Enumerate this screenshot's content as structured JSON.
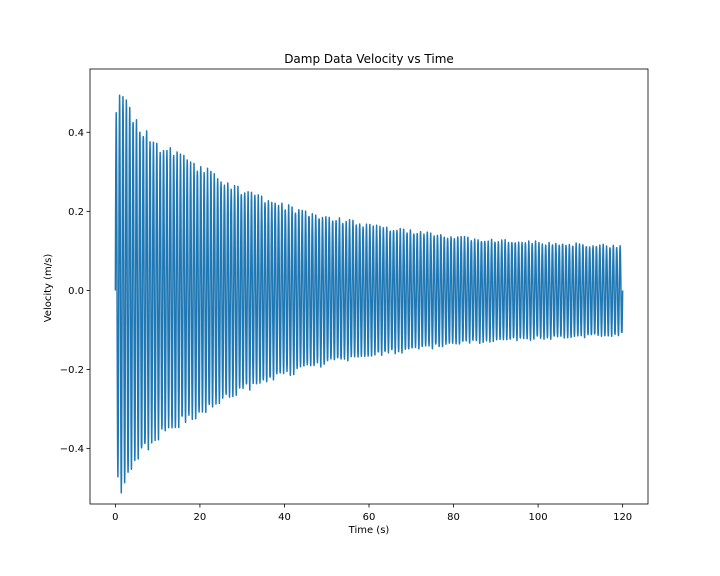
{
  "chart_data": {
    "type": "line",
    "title": "Damp Data Velocity vs Time",
    "xlabel": "Time (s)",
    "ylabel": "Velocity (m/s)",
    "xlim": [
      -6,
      126
    ],
    "ylim": [
      -0.54,
      0.56
    ],
    "xticks": [
      0,
      20,
      40,
      60,
      80,
      100,
      120
    ],
    "yticks": [
      -0.4,
      -0.2,
      0.0,
      0.2,
      0.4
    ],
    "xtick_labels": [
      "0",
      "20",
      "40",
      "60",
      "80",
      "100",
      "120"
    ],
    "ytick_labels": [
      "−0.4",
      "−0.2",
      "0.0",
      "0.2",
      "0.4"
    ],
    "grid": false,
    "series": [
      {
        "color": "#1f77b4",
        "t_start": 0,
        "t_end": 120,
        "oscillation_period_s": 0.8,
        "envelope_points": [
          [
            0,
            0.45
          ],
          [
            1.5,
            0.52
          ],
          [
            5,
            0.44
          ],
          [
            10,
            0.38
          ],
          [
            20,
            0.32
          ],
          [
            30,
            0.26
          ],
          [
            40,
            0.22
          ],
          [
            50,
            0.19
          ],
          [
            60,
            0.17
          ],
          [
            70,
            0.155
          ],
          [
            80,
            0.14
          ],
          [
            90,
            0.13
          ],
          [
            100,
            0.125
          ],
          [
            110,
            0.12
          ],
          [
            120,
            0.115
          ]
        ]
      }
    ]
  }
}
